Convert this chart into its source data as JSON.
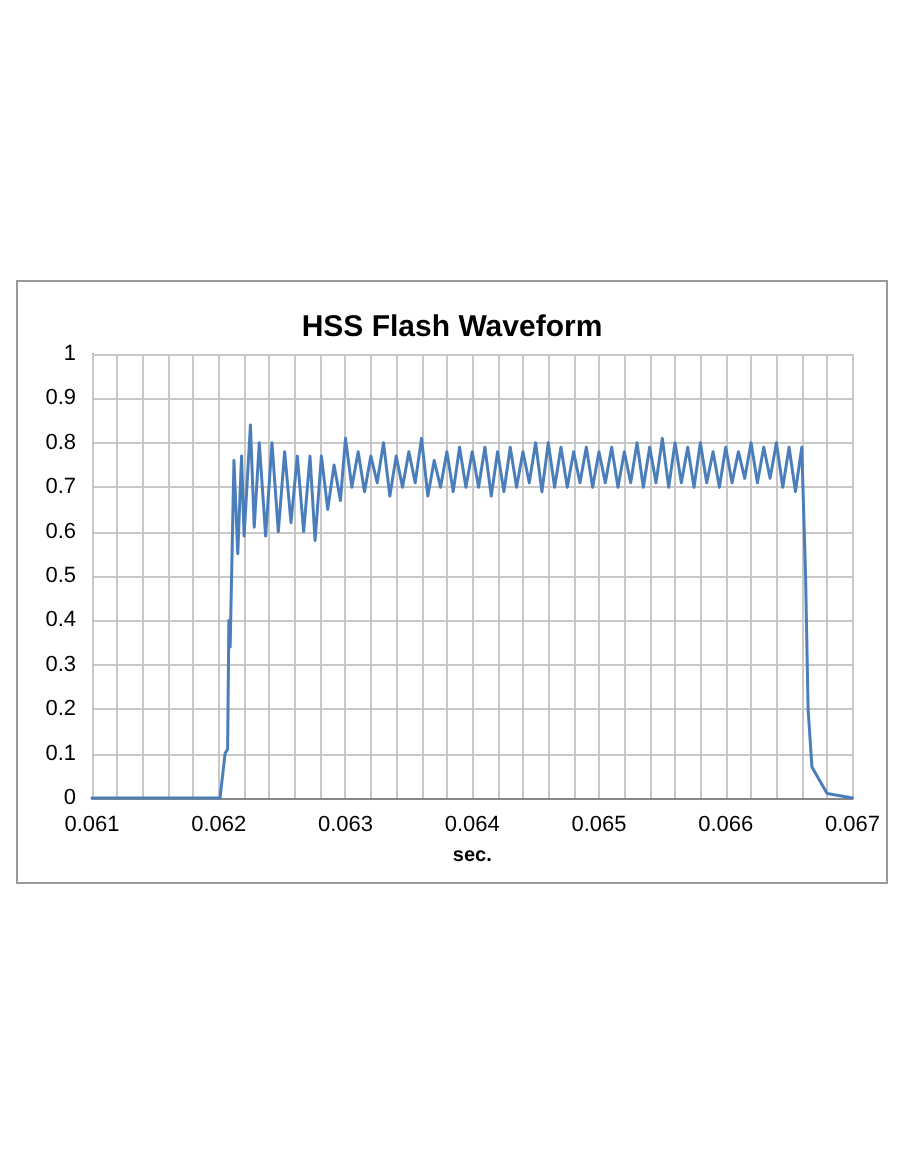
{
  "chart_data": {
    "type": "line",
    "title": "HSS Flash Waveform",
    "xlabel": "sec.",
    "series": [
      {
        "color": "#4a7ebb",
        "x": [
          0.061,
          0.06201,
          0.06205,
          0.06207,
          0.06208,
          0.06209,
          0.06212,
          0.06215,
          0.06218,
          0.0622,
          0.06225,
          0.06228,
          0.06232,
          0.06237,
          0.06242,
          0.06247,
          0.06252,
          0.06257,
          0.06262,
          0.06267,
          0.06272,
          0.06276,
          0.06281,
          0.06286,
          0.06291,
          0.06296,
          0.063,
          0.06305,
          0.0631,
          0.06315,
          0.0632,
          0.06325,
          0.0633,
          0.06335,
          0.0634,
          0.06345,
          0.0635,
          0.06355,
          0.0636,
          0.06365,
          0.0637,
          0.06375,
          0.0638,
          0.06385,
          0.0639,
          0.06395,
          0.064,
          0.06405,
          0.0641,
          0.06415,
          0.0642,
          0.06425,
          0.0643,
          0.06435,
          0.0644,
          0.06445,
          0.0645,
          0.06455,
          0.0646,
          0.06465,
          0.0647,
          0.06475,
          0.0648,
          0.06485,
          0.0649,
          0.06495,
          0.065,
          0.06505,
          0.0651,
          0.06515,
          0.0652,
          0.06525,
          0.0653,
          0.06535,
          0.0654,
          0.06545,
          0.0655,
          0.06555,
          0.0656,
          0.06565,
          0.0657,
          0.06575,
          0.0658,
          0.06585,
          0.0659,
          0.06595,
          0.066,
          0.06605,
          0.0661,
          0.06615,
          0.0662,
          0.06625,
          0.0663,
          0.06635,
          0.0664,
          0.06645,
          0.0665,
          0.06655,
          0.0666,
          0.06663,
          0.06665,
          0.06668,
          0.0668,
          0.067
        ],
        "values": [
          0,
          0,
          0.1,
          0.11,
          0.4,
          0.34,
          0.76,
          0.55,
          0.77,
          0.59,
          0.84,
          0.61,
          0.8,
          0.59,
          0.8,
          0.6,
          0.78,
          0.62,
          0.77,
          0.6,
          0.77,
          0.58,
          0.77,
          0.65,
          0.75,
          0.67,
          0.81,
          0.7,
          0.78,
          0.69,
          0.77,
          0.71,
          0.8,
          0.68,
          0.77,
          0.7,
          0.78,
          0.71,
          0.81,
          0.68,
          0.76,
          0.7,
          0.78,
          0.69,
          0.79,
          0.7,
          0.78,
          0.7,
          0.79,
          0.68,
          0.78,
          0.69,
          0.79,
          0.7,
          0.78,
          0.71,
          0.8,
          0.69,
          0.8,
          0.7,
          0.79,
          0.7,
          0.78,
          0.71,
          0.79,
          0.7,
          0.78,
          0.71,
          0.79,
          0.7,
          0.78,
          0.71,
          0.8,
          0.7,
          0.79,
          0.71,
          0.81,
          0.7,
          0.8,
          0.71,
          0.79,
          0.7,
          0.8,
          0.71,
          0.78,
          0.7,
          0.79,
          0.71,
          0.78,
          0.72,
          0.8,
          0.71,
          0.79,
          0.72,
          0.8,
          0.7,
          0.79,
          0.69,
          0.79,
          0.5,
          0.2,
          0.07,
          0.01,
          0
        ]
      }
    ],
    "xlim": [
      0.061,
      0.067
    ],
    "xticks": [
      0.061,
      {
        "value": 0.0612,
        "label": null
      },
      {
        "value": 0.0614,
        "label": null
      },
      {
        "value": 0.0616,
        "label": null
      },
      {
        "value": 0.0618,
        "label": null
      },
      0.062,
      {
        "value": 0.0622,
        "label": null
      },
      {
        "value": 0.0624,
        "label": null
      },
      {
        "value": 0.0626,
        "label": null
      },
      {
        "value": 0.0628,
        "label": null
      },
      0.063,
      {
        "value": 0.0632,
        "label": null
      },
      {
        "value": 0.0634,
        "label": null
      },
      {
        "value": 0.0636,
        "label": null
      },
      {
        "value": 0.0638,
        "label": null
      },
      0.064,
      {
        "value": 0.0642,
        "label": null
      },
      {
        "value": 0.0644,
        "label": null
      },
      {
        "value": 0.0646,
        "label": null
      },
      {
        "value": 0.0648,
        "label": null
      },
      0.065,
      {
        "value": 0.0652,
        "label": null
      },
      {
        "value": 0.0654,
        "label": null
      },
      {
        "value": 0.0656,
        "label": null
      },
      {
        "value": 0.0658,
        "label": null
      },
      0.066,
      {
        "value": 0.0662,
        "label": null
      },
      {
        "value": 0.0664,
        "label": null
      },
      {
        "value": 0.0666,
        "label": null
      },
      {
        "value": 0.0668,
        "label": null
      },
      0.067
    ],
    "ylim": [
      0,
      1
    ],
    "yticks": [
      0,
      0.1,
      0.2,
      0.3,
      0.4,
      0.5,
      0.6,
      0.7,
      0.8,
      0.9,
      1
    ],
    "grid": true,
    "marker": "none",
    "line_style": "solid"
  }
}
